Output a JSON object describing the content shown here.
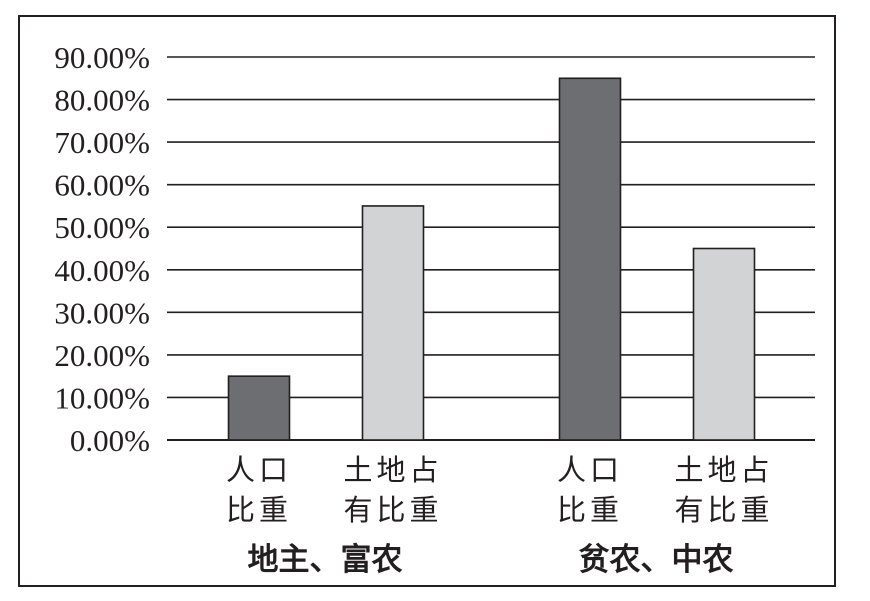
{
  "chart_data": {
    "type": "bar",
    "groups": [
      "地主、富农",
      "贫农、中农"
    ],
    "categories": [
      [
        "人口",
        "比重"
      ],
      [
        "土地占",
        "有比重"
      ]
    ],
    "series": [
      {
        "values": [
          15,
          85
        ],
        "color": "#6d6e71"
      },
      {
        "values": [
          55,
          45
        ],
        "color": "#d1d3d4"
      }
    ],
    "y_ticks": [
      "0.00%",
      "10.00%",
      "20.00%",
      "30.00%",
      "40.00%",
      "50.00%",
      "60.00%",
      "70.00%",
      "80.00%",
      "90.00%"
    ],
    "ylim": [
      0,
      90
    ],
    "grid": true,
    "title": "",
    "xlabel": "",
    "ylabel": ""
  }
}
